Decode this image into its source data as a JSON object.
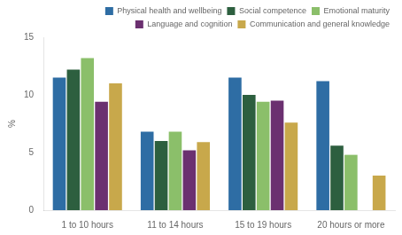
{
  "chart_data": {
    "type": "bar",
    "categories": [
      "1 to 10 hours",
      "11 to 14 hours",
      "15 to 19 hours",
      "20 hours or more"
    ],
    "series": [
      {
        "name": "Physical health and wellbeing",
        "color": "#2E6DA4",
        "values": [
          11.5,
          6.8,
          11.5,
          11.2
        ]
      },
      {
        "name": "Social competence",
        "color": "#2D5F3F",
        "values": [
          12.2,
          6.0,
          10.0,
          5.6
        ]
      },
      {
        "name": "Emotional maturity",
        "color": "#8BBF6A",
        "values": [
          13.2,
          6.8,
          9.4,
          4.8
        ]
      },
      {
        "name": "Language and cognition",
        "color": "#6B3070",
        "values": [
          9.4,
          5.2,
          9.5,
          0.0
        ]
      },
      {
        "name": "Communication and general knowledge",
        "color": "#C8A84B",
        "values": [
          11.0,
          5.9,
          7.6,
          3.0
        ]
      }
    ],
    "ylabel": "%",
    "ylim": [
      0,
      15
    ],
    "yticks": [
      0,
      5,
      10,
      15
    ],
    "grid": false,
    "legend": "upper right"
  }
}
